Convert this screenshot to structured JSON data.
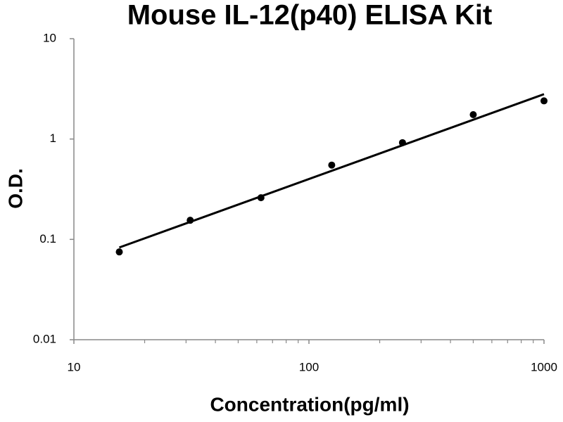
{
  "chart_data": {
    "type": "scatter",
    "title": "Mouse IL-12(p40) ELISA Kit",
    "x_label": "Concentration(pg/ml)",
    "y_label": "O.D.",
    "x": [
      15.6,
      31.25,
      62.5,
      125,
      250,
      500,
      1000
    ],
    "series": [
      {
        "color": "#000000",
        "values": [
          0.075,
          0.155,
          0.26,
          0.55,
          0.92,
          1.75,
          2.4
        ]
      }
    ],
    "trendline": {
      "color": "#000000",
      "x": [
        15.6,
        1000
      ],
      "values": [
        0.083,
        2.8
      ]
    },
    "xlim": [
      10,
      1000
    ],
    "ylim": [
      0.01,
      10
    ],
    "xticks": [
      10,
      100,
      1000
    ],
    "xminorticks": [
      20,
      30,
      40,
      50,
      60,
      70,
      80,
      90,
      200,
      300,
      400,
      500,
      600,
      700,
      800,
      900
    ],
    "yticks": [
      0.01,
      0.1,
      1,
      10
    ],
    "xscale": "log",
    "yscale": "log",
    "grid": false
  }
}
